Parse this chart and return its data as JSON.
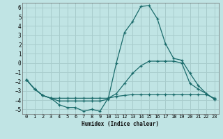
{
  "xlabel": "Humidex (Indice chaleur)",
  "bg_color": "#c0e4e4",
  "grid_color": "#a8cccc",
  "line_color": "#1a6b6b",
  "xlim": [
    -0.5,
    23.5
  ],
  "ylim": [
    -5.5,
    6.5
  ],
  "yticks": [
    -5,
    -4,
    -3,
    -2,
    -1,
    0,
    1,
    2,
    3,
    4,
    5,
    6
  ],
  "xticks": [
    0,
    1,
    2,
    3,
    4,
    5,
    6,
    7,
    8,
    9,
    10,
    11,
    12,
    13,
    14,
    15,
    16,
    17,
    18,
    19,
    20,
    21,
    22,
    23
  ],
  "line1_x": [
    0,
    1,
    2,
    3,
    4,
    5,
    6,
    7,
    8,
    9,
    10,
    11,
    12,
    13,
    14,
    15,
    16,
    17,
    18,
    19,
    20,
    21,
    22,
    23
  ],
  "line1_y": [
    -1.8,
    -2.8,
    -3.5,
    -3.8,
    -4.5,
    -4.8,
    -4.8,
    -5.2,
    -5.0,
    -5.2,
    -3.8,
    -3.3,
    -2.2,
    -1.1,
    -0.3,
    0.2,
    0.2,
    0.2,
    0.2,
    0.0,
    -2.2,
    -2.8,
    -3.3,
    -3.9
  ],
  "line2_x": [
    0,
    1,
    2,
    3,
    4,
    5,
    6,
    7,
    8,
    9,
    10,
    11,
    12,
    13,
    14,
    15,
    16,
    17,
    18,
    19,
    20,
    21,
    22,
    23
  ],
  "line2_y": [
    -1.8,
    -2.8,
    -3.5,
    -3.8,
    -3.8,
    -3.8,
    -3.8,
    -3.8,
    -3.8,
    -3.8,
    -3.8,
    -3.6,
    -3.5,
    -3.4,
    -3.4,
    -3.4,
    -3.4,
    -3.4,
    -3.4,
    -3.4,
    -3.4,
    -3.4,
    -3.4,
    -3.8
  ],
  "line3_x": [
    0,
    1,
    2,
    3,
    4,
    5,
    6,
    7,
    8,
    9,
    10,
    11,
    12,
    13,
    14,
    15,
    16,
    17,
    18,
    19,
    20,
    21,
    22,
    23
  ],
  "line3_y": [
    -1.8,
    -2.8,
    -3.5,
    -3.8,
    -4.1,
    -4.1,
    -4.1,
    -4.1,
    -4.1,
    -4.1,
    -3.9,
    0.0,
    3.3,
    4.5,
    6.1,
    6.2,
    4.8,
    2.1,
    0.5,
    0.3,
    -1.1,
    -2.4,
    -3.3,
    -3.9
  ]
}
